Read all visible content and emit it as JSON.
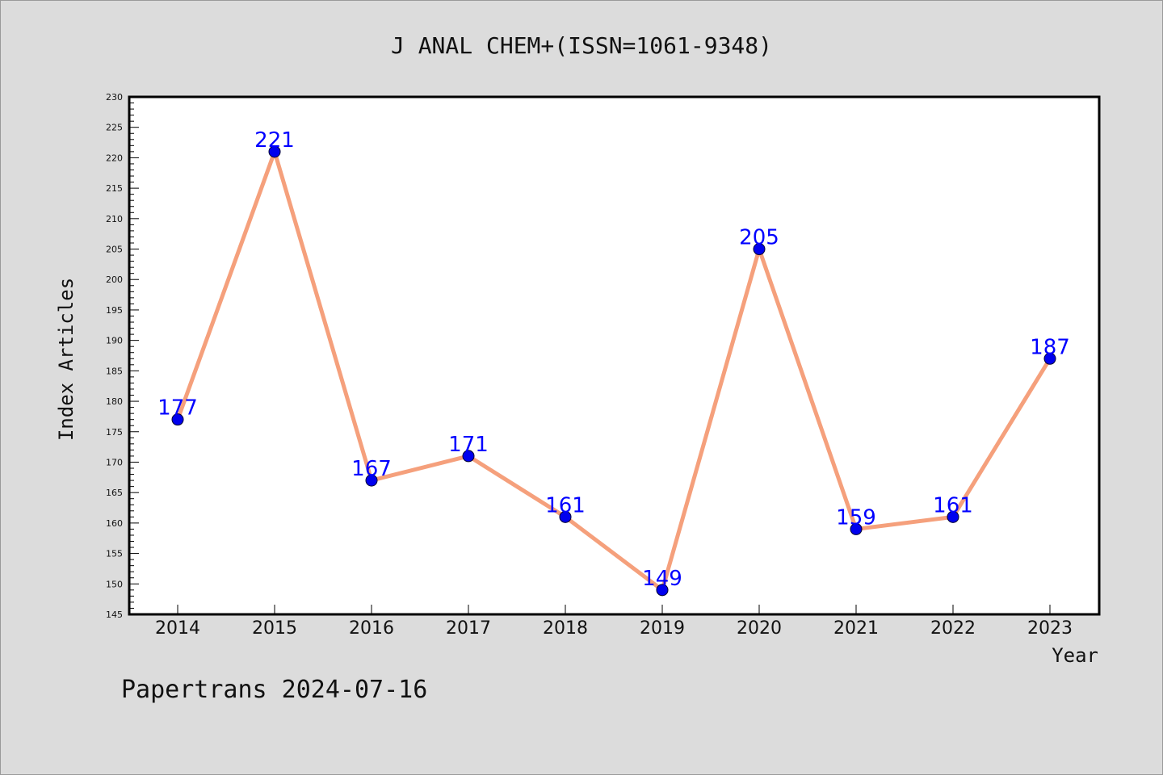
{
  "chart_data": {
    "type": "line",
    "title": "J ANAL CHEM+(ISSN=1061-9348)",
    "xlabel": "Year",
    "ylabel": "Index Articles",
    "categories": [
      "2014",
      "2015",
      "2016",
      "2017",
      "2018",
      "2019",
      "2020",
      "2021",
      "2022",
      "2023"
    ],
    "series": [
      {
        "values": [
          177,
          221,
          167,
          171,
          161,
          149,
          205,
          159,
          161,
          187
        ]
      }
    ],
    "ylim": [
      145,
      230
    ],
    "yticks": [
      "145",
      "150",
      "155",
      "160",
      "165",
      "170",
      "175",
      "180",
      "185",
      "190",
      "195",
      "200",
      "205",
      "210",
      "215",
      "220",
      "225",
      "230"
    ],
    "grid": false,
    "data_labels": true,
    "colors": {
      "line": "#f5a07c",
      "marker": "#0000ee",
      "label": "#0000ff",
      "background": "#dcdcdc",
      "plot_background": "#ffffff"
    }
  },
  "footer": {
    "text": "Papertrans 2024-07-16"
  }
}
